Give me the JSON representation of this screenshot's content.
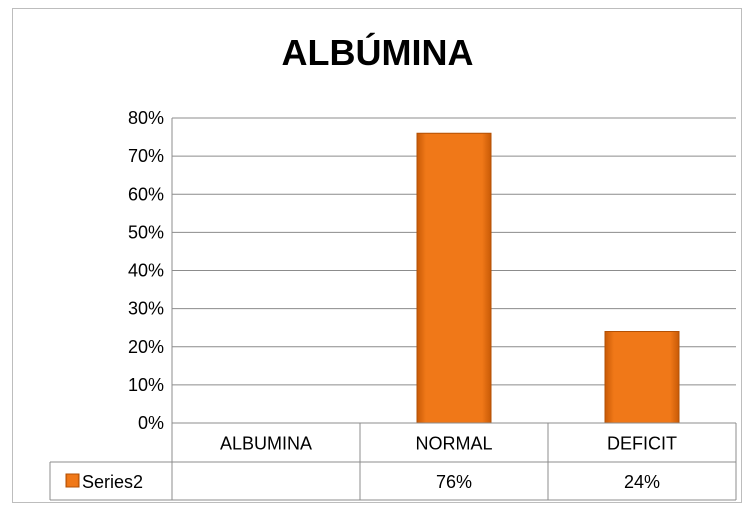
{
  "chart_data": {
    "type": "bar",
    "title": "ALBÚMINA",
    "categories": [
      "ALBUMINA",
      "NORMAL",
      "DEFICIT"
    ],
    "series": [
      {
        "name": "Series2",
        "values": [
          null,
          0.76,
          0.24
        ],
        "labels": [
          "",
          "76%",
          "24%"
        ]
      }
    ],
    "y_ticks": [
      "0%",
      "10%",
      "20%",
      "30%",
      "40%",
      "50%",
      "60%",
      "70%",
      "80%"
    ],
    "ylim": [
      0,
      0.8
    ],
    "grid": true,
    "legend": "data-table-left",
    "bar_color": "#f07818"
  }
}
